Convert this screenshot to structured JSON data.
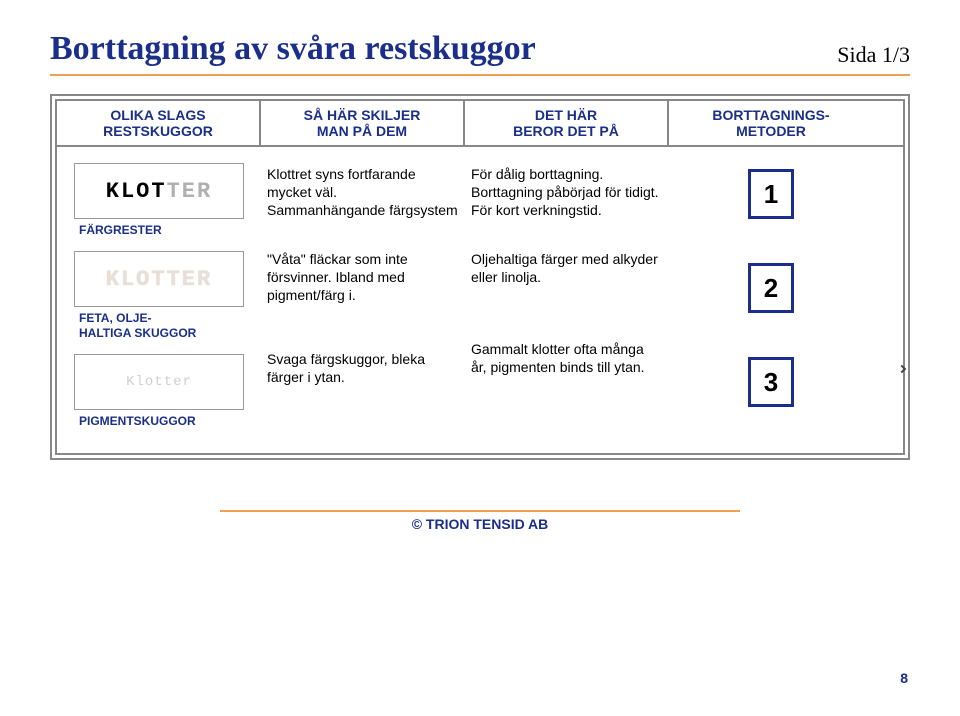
{
  "title": "Borttagning av svåra restskuggor",
  "page_label": "Sida 1/3",
  "headers": {
    "c1": "OLIKA SLAGS\nRESTSKUGGOR",
    "c2": "SÅ HÄR SKILJER\nMAN PÅ DEM",
    "c3": "DET HÄR\nBEROR DET PÅ",
    "c4": "BORTTAGNINGS-\nMETODER"
  },
  "col1": {
    "sample1_black": "KLOT",
    "sample1_gray": "TER",
    "label1": "FÄRGRESTER",
    "sample2": "KLOTTER",
    "label2": "FETA, OLJE-\nHALTIGA SKUGGOR",
    "sample3": "Klotter",
    "label3": "PIGMENTSKUGGOR"
  },
  "col2": {
    "t1": "Klottret syns fortfarande mycket väl. Sammanhängande färgsystem",
    "t2": "\"Våta\" fläckar som inte försvinner. Ibland med pigment/färg i.",
    "t3": "Svaga färgskuggor, bleka färger i ytan."
  },
  "col3": {
    "t1": "För dålig borttagning. Borttagning påbörjad för tidigt. För kort verkningstid.",
    "t2": "Oljehaltiga färger med alkyder eller linolja.",
    "t3": "Gammalt klotter ofta många år, pigmenten binds till ytan."
  },
  "col4": {
    "n1": "1",
    "n2": "2",
    "n3": "3"
  },
  "footer": "© TRION TENSID AB",
  "footer_page": "8"
}
